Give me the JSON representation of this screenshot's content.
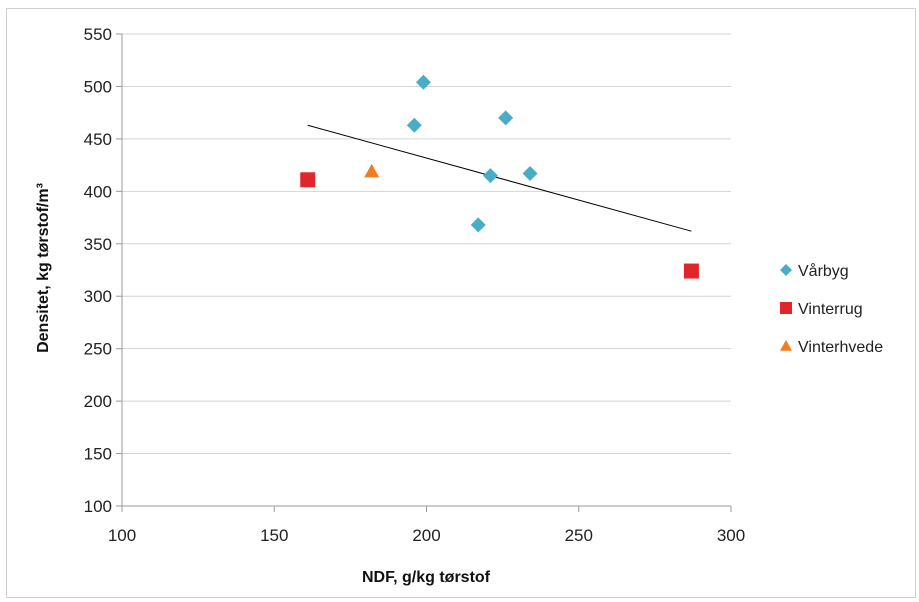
{
  "chart_data": {
    "type": "scatter",
    "xlabel": "NDF, g/kg tørstof",
    "ylabel": "Densitet, kg tørstof/m³",
    "xlim": [
      100,
      300
    ],
    "ylim": [
      100,
      550
    ],
    "x_ticks": [
      100,
      150,
      200,
      250,
      300
    ],
    "y_ticks": [
      100,
      150,
      200,
      250,
      300,
      350,
      400,
      450,
      500,
      550
    ],
    "grid": "horizontal",
    "legend_position": "right",
    "series": [
      {
        "name": "Vårbyg",
        "marker": "diamond",
        "color": "#4BACC6",
        "points": [
          [
            199,
            504
          ],
          [
            196,
            463
          ],
          [
            226,
            470
          ],
          [
            221,
            415
          ],
          [
            234,
            417
          ],
          [
            217,
            368
          ]
        ]
      },
      {
        "name": "Vinterrug",
        "marker": "square",
        "color": "#E0262B",
        "points": [
          [
            161,
            411
          ],
          [
            287,
            324
          ]
        ]
      },
      {
        "name": "Vinterhvede",
        "marker": "triangle",
        "color": "#F07D22",
        "points": [
          [
            182,
            419
          ]
        ]
      }
    ],
    "trendline": {
      "type": "linear",
      "color": "#000000",
      "x_range": [
        161,
        287
      ],
      "y_range": [
        463,
        362
      ]
    }
  }
}
